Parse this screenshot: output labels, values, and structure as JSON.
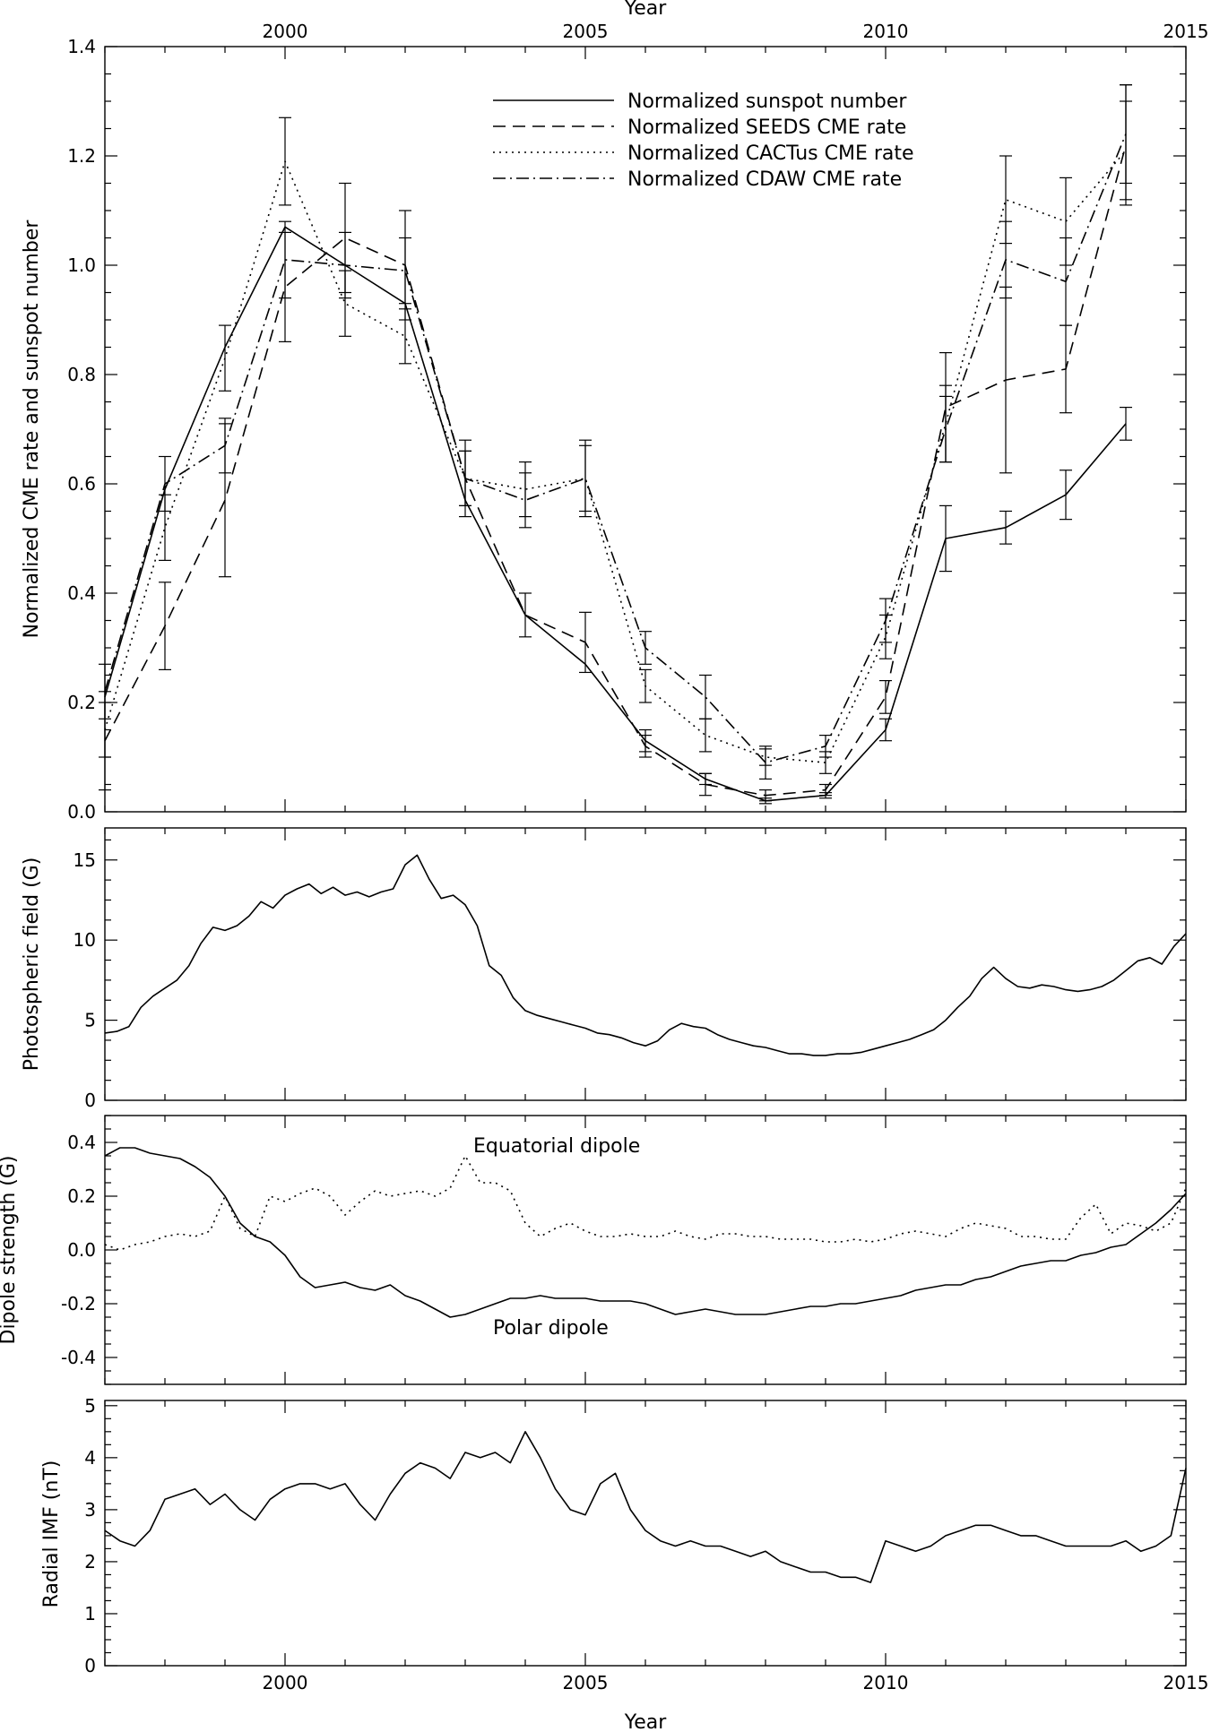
{
  "chart_data": [
    {
      "type": "line",
      "xlabel_top": "Year",
      "ylabel": "Normalized CME rate and sunspot number",
      "xlim": [
        1997.0,
        2015.0
      ],
      "ylim": [
        0.0,
        1.4
      ],
      "x_ticks": [
        "2000",
        "2005",
        "2010",
        "2015"
      ],
      "y_ticks": [
        "0.0",
        "0.2",
        "0.4",
        "0.6",
        "0.8",
        "1.0",
        "1.2",
        "1.4"
      ],
      "legend_position": "top-right",
      "x": [
        1997.0,
        1998.0,
        1999.0,
        2000.0,
        2001.0,
        2002.0,
        2003.0,
        2004.0,
        2005.0,
        2006.0,
        2007.0,
        2008.0,
        2009.0,
        2010.0,
        2011.0,
        2012.0,
        2013.0,
        2014.0
      ],
      "series": [
        {
          "name": "Normalized sunspot number",
          "style": "solid",
          "values": [
            0.21,
            0.59,
            0.85,
            1.07,
            1.0,
            0.93,
            0.57,
            0.36,
            0.27,
            0.13,
            0.06,
            0.02,
            0.03,
            0.15,
            0.5,
            0.52,
            0.58,
            0.71
          ],
          "errors": [
            0.0,
            0.0,
            0.0,
            0.0,
            0.0,
            0.0,
            0.0,
            0.0,
            0.0,
            0.02,
            0.01,
            0.005,
            0.005,
            0.02,
            0.06,
            0.03,
            0.045,
            0.03
          ]
        },
        {
          "name": "Normalized SEEDS CME rate",
          "style": "dashed",
          "values": [
            0.13,
            0.34,
            0.57,
            0.96,
            1.05,
            1.0,
            0.61,
            0.36,
            0.31,
            0.12,
            0.05,
            0.03,
            0.04,
            0.21,
            0.74,
            0.79,
            0.81,
            1.22
          ],
          "errors": [
            0.09,
            0.08,
            0.14,
            0.1,
            0.1,
            0.1,
            0.07,
            0.04,
            0.055,
            0.02,
            0.02,
            0.01,
            0.01,
            0.03,
            0.1,
            0.17,
            0.08,
            0.11
          ]
        },
        {
          "name": "Normalized CACTus CME rate",
          "style": "dotted",
          "values": [
            0.15,
            0.52,
            0.83,
            1.19,
            0.93,
            0.87,
            0.61,
            0.59,
            0.61,
            0.23,
            0.14,
            0.1,
            0.09,
            0.32,
            0.71,
            1.12,
            1.08,
            1.21
          ],
          "errors": [
            0.05,
            0.06,
            0.06,
            0.08,
            0.06,
            0.05,
            0.05,
            0.05,
            0.06,
            0.03,
            0.03,
            0.015,
            0.02,
            0.04,
            0.07,
            0.08,
            0.08,
            0.09
          ]
        },
        {
          "name": "Normalized CDAW CME rate",
          "style": "dashdot",
          "values": [
            0.22,
            0.6,
            0.67,
            1.01,
            1.0,
            0.99,
            0.61,
            0.57,
            0.61,
            0.3,
            0.21,
            0.09,
            0.12,
            0.35,
            0.7,
            1.01,
            0.97,
            1.24
          ],
          "errors": [
            0.05,
            0.05,
            0.05,
            0.07,
            0.06,
            0.06,
            0.05,
            0.05,
            0.07,
            0.03,
            0.04,
            0.03,
            0.02,
            0.04,
            0.06,
            0.07,
            0.08,
            0.09
          ]
        }
      ]
    },
    {
      "type": "line",
      "ylabel": "Photospheric field (G)",
      "xlim": [
        1997.0,
        2015.0
      ],
      "ylim": [
        0,
        17
      ],
      "y_ticks": [
        "0",
        "5",
        "10",
        "15"
      ],
      "x": [
        1997.0,
        1997.2,
        1997.4,
        1997.6,
        1997.8,
        1998.0,
        1998.2,
        1998.4,
        1998.6,
        1998.8,
        1999.0,
        1999.2,
        1999.4,
        1999.6,
        1999.8,
        2000.0,
        2000.2,
        2000.4,
        2000.6,
        2000.8,
        2001.0,
        2001.2,
        2001.4,
        2001.6,
        2001.8,
        2002.0,
        2002.2,
        2002.4,
        2002.6,
        2002.8,
        2003.0,
        2003.2,
        2003.4,
        2003.6,
        2003.8,
        2004.0,
        2004.2,
        2004.4,
        2004.6,
        2004.8,
        2005.0,
        2005.2,
        2005.4,
        2005.6,
        2005.8,
        2006.0,
        2006.2,
        2006.4,
        2006.6,
        2006.8,
        2007.0,
        2007.2,
        2007.4,
        2007.6,
        2007.8,
        2008.0,
        2008.2,
        2008.4,
        2008.6,
        2008.8,
        2009.0,
        2009.2,
        2009.4,
        2009.6,
        2009.8,
        2010.0,
        2010.2,
        2010.4,
        2010.6,
        2010.8,
        2011.0,
        2011.2,
        2011.4,
        2011.6,
        2011.8,
        2012.0,
        2012.2,
        2012.4,
        2012.6,
        2012.8,
        2013.0,
        2013.2,
        2013.4,
        2013.6,
        2013.8,
        2014.0,
        2014.2,
        2014.4,
        2014.6,
        2014.8,
        2015.0
      ],
      "series": [
        {
          "name": "",
          "style": "solid",
          "values": [
            4.2,
            4.3,
            4.6,
            5.8,
            6.5,
            7.0,
            7.5,
            8.4,
            9.8,
            10.8,
            10.6,
            10.9,
            11.5,
            12.4,
            12.0,
            12.8,
            13.2,
            13.5,
            12.9,
            13.3,
            12.8,
            13.0,
            12.7,
            13.0,
            13.2,
            14.7,
            15.3,
            13.8,
            12.6,
            12.8,
            12.2,
            10.9,
            8.4,
            7.8,
            6.4,
            5.6,
            5.3,
            5.1,
            4.9,
            4.7,
            4.5,
            4.2,
            4.1,
            3.9,
            3.6,
            3.4,
            3.7,
            4.4,
            4.8,
            4.6,
            4.5,
            4.1,
            3.8,
            3.6,
            3.4,
            3.3,
            3.1,
            2.9,
            2.9,
            2.8,
            2.8,
            2.9,
            2.9,
            3.0,
            3.2,
            3.4,
            3.6,
            3.8,
            4.1,
            4.4,
            5.0,
            5.8,
            6.5,
            7.6,
            8.3,
            7.6,
            7.1,
            7.0,
            7.2,
            7.1,
            6.9,
            6.8,
            6.9,
            7.1,
            7.5,
            8.1,
            8.7,
            8.9,
            8.5,
            9.6,
            10.4
          ]
        }
      ]
    },
    {
      "type": "line",
      "ylabel": "Dipole strength (G)",
      "xlim": [
        1997.0,
        2015.0
      ],
      "ylim": [
        -0.5,
        0.5
      ],
      "y_ticks": [
        "-0.4",
        "-0.2",
        "0.0",
        "0.2",
        "0.4"
      ],
      "annotations": [
        "Equatorial dipole",
        "Polar dipole"
      ],
      "x": [
        1997.0,
        1997.25,
        1997.5,
        1997.75,
        1998.0,
        1998.25,
        1998.5,
        1998.75,
        1999.0,
        1999.25,
        1999.5,
        1999.75,
        2000.0,
        2000.25,
        2000.5,
        2000.75,
        2001.0,
        2001.25,
        2001.5,
        2001.75,
        2002.0,
        2002.25,
        2002.5,
        2002.75,
        2003.0,
        2003.25,
        2003.5,
        2003.75,
        2004.0,
        2004.25,
        2004.5,
        2004.75,
        2005.0,
        2005.25,
        2005.5,
        2005.75,
        2006.0,
        2006.25,
        2006.5,
        2006.75,
        2007.0,
        2007.25,
        2007.5,
        2007.75,
        2008.0,
        2008.25,
        2008.5,
        2008.75,
        2009.0,
        2009.25,
        2009.5,
        2009.75,
        2010.0,
        2010.25,
        2010.5,
        2010.75,
        2011.0,
        2011.25,
        2011.5,
        2011.75,
        2012.0,
        2012.25,
        2012.5,
        2012.75,
        2013.0,
        2013.25,
        2013.5,
        2013.75,
        2014.0,
        2014.25,
        2014.5,
        2014.75,
        2015.0
      ],
      "series": [
        {
          "name": "Polar dipole",
          "style": "solid",
          "values": [
            0.35,
            0.38,
            0.38,
            0.36,
            0.35,
            0.34,
            0.31,
            0.27,
            0.2,
            0.1,
            0.05,
            0.03,
            -0.02,
            -0.1,
            -0.14,
            -0.13,
            -0.12,
            -0.14,
            -0.15,
            -0.13,
            -0.17,
            -0.19,
            -0.22,
            -0.25,
            -0.24,
            -0.22,
            -0.2,
            -0.18,
            -0.18,
            -0.17,
            -0.18,
            -0.18,
            -0.18,
            -0.19,
            -0.19,
            -0.19,
            -0.2,
            -0.22,
            -0.24,
            -0.23,
            -0.22,
            -0.23,
            -0.24,
            -0.24,
            -0.24,
            -0.23,
            -0.22,
            -0.21,
            -0.21,
            -0.2,
            -0.2,
            -0.19,
            -0.18,
            -0.17,
            -0.15,
            -0.14,
            -0.13,
            -0.13,
            -0.11,
            -0.1,
            -0.08,
            -0.06,
            -0.05,
            -0.04,
            -0.04,
            -0.02,
            -0.01,
            0.01,
            0.02,
            0.06,
            0.1,
            0.15,
            0.21
          ]
        },
        {
          "name": "Equatorial dipole",
          "style": "dotted",
          "values": [
            0.02,
            0.0,
            0.02,
            0.03,
            0.05,
            0.06,
            0.05,
            0.07,
            0.2,
            0.08,
            0.05,
            0.2,
            0.18,
            0.21,
            0.23,
            0.2,
            0.13,
            0.18,
            0.22,
            0.2,
            0.21,
            0.22,
            0.2,
            0.23,
            0.35,
            0.25,
            0.25,
            0.22,
            0.1,
            0.05,
            0.08,
            0.1,
            0.07,
            0.05,
            0.05,
            0.06,
            0.05,
            0.05,
            0.07,
            0.05,
            0.04,
            0.06,
            0.06,
            0.05,
            0.05,
            0.04,
            0.04,
            0.04,
            0.03,
            0.03,
            0.04,
            0.03,
            0.04,
            0.06,
            0.07,
            0.06,
            0.05,
            0.08,
            0.1,
            0.09,
            0.08,
            0.05,
            0.05,
            0.04,
            0.04,
            0.12,
            0.17,
            0.06,
            0.1,
            0.09,
            0.07,
            0.1,
            0.23
          ]
        }
      ]
    },
    {
      "type": "line",
      "xlabel": "Year",
      "ylabel": "Radial IMF (nT)",
      "xlim": [
        1997.0,
        2015.0
      ],
      "ylim": [
        0,
        5.1
      ],
      "x_ticks": [
        "2000",
        "2005",
        "2010",
        "2015"
      ],
      "y_ticks": [
        "0",
        "1",
        "2",
        "3",
        "4",
        "5"
      ],
      "x": [
        1997.0,
        1997.25,
        1997.5,
        1997.75,
        1998.0,
        1998.25,
        1998.5,
        1998.75,
        1999.0,
        1999.25,
        1999.5,
        1999.75,
        2000.0,
        2000.25,
        2000.5,
        2000.75,
        2001.0,
        2001.25,
        2001.5,
        2001.75,
        2002.0,
        2002.25,
        2002.5,
        2002.75,
        2003.0,
        2003.25,
        2003.5,
        2003.75,
        2004.0,
        2004.25,
        2004.5,
        2004.75,
        2005.0,
        2005.25,
        2005.5,
        2005.75,
        2006.0,
        2006.25,
        2006.5,
        2006.75,
        2007.0,
        2007.25,
        2007.5,
        2007.75,
        2008.0,
        2008.25,
        2008.5,
        2008.75,
        2009.0,
        2009.25,
        2009.5,
        2009.75,
        2010.0,
        2010.25,
        2010.5,
        2010.75,
        2011.0,
        2011.25,
        2011.5,
        2011.75,
        2012.0,
        2012.25,
        2012.5,
        2012.75,
        2013.0,
        2013.25,
        2013.5,
        2013.75,
        2014.0,
        2014.25,
        2014.5,
        2014.75,
        2015.0
      ],
      "series": [
        {
          "name": "",
          "style": "solid",
          "values": [
            2.6,
            2.4,
            2.3,
            2.6,
            3.2,
            3.3,
            3.4,
            3.1,
            3.3,
            3.0,
            2.8,
            3.2,
            3.4,
            3.5,
            3.5,
            3.4,
            3.5,
            3.1,
            2.8,
            3.3,
            3.7,
            3.9,
            3.8,
            3.6,
            4.1,
            4.0,
            4.1,
            3.9,
            4.5,
            4.0,
            3.4,
            3.0,
            2.9,
            3.5,
            3.7,
            3.0,
            2.6,
            2.4,
            2.3,
            2.4,
            2.3,
            2.3,
            2.2,
            2.1,
            2.2,
            2.0,
            1.9,
            1.8,
            1.8,
            1.7,
            1.7,
            1.6,
            2.4,
            2.3,
            2.2,
            2.3,
            2.5,
            2.6,
            2.7,
            2.7,
            2.6,
            2.5,
            2.5,
            2.4,
            2.3,
            2.3,
            2.3,
            2.3,
            2.4,
            2.2,
            2.3,
            2.5,
            3.8
          ]
        }
      ]
    }
  ]
}
